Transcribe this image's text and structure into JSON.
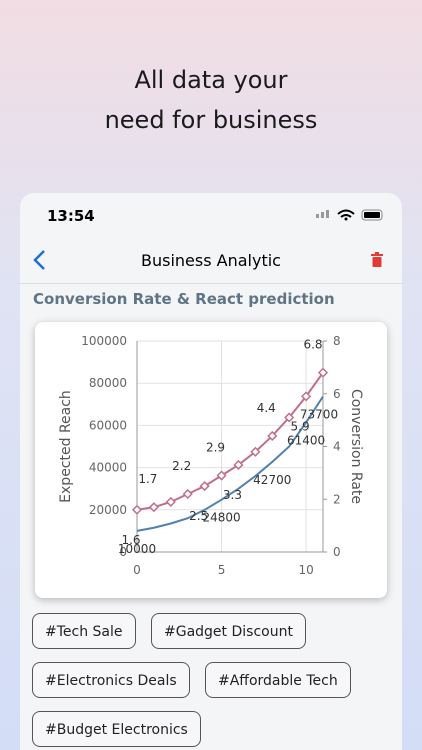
{
  "header": {
    "lines": [
      "All data your",
      "need for business"
    ]
  },
  "status": {
    "time": "13:54"
  },
  "nav": {
    "title": "Business Analytic"
  },
  "section": {
    "title": "Conversion Rate & React prediction"
  },
  "chart_data": {
    "type": "line",
    "ylabel": "Expected Reach",
    "y2label": "Conversion Rate",
    "x": [
      0,
      1,
      2,
      3,
      4,
      5,
      6,
      7,
      8,
      9,
      10,
      11
    ],
    "xlim": [
      0,
      11
    ],
    "xticks": [
      0,
      5,
      10
    ],
    "ylim": [
      0,
      100000
    ],
    "yticks": [
      0,
      20000,
      40000,
      60000,
      80000,
      100000
    ],
    "y2lim": [
      0,
      8
    ],
    "y2ticks": [
      0,
      2,
      4,
      6,
      8
    ],
    "grid": true,
    "series": [
      {
        "name": "Expected Reach",
        "color": "#4f81b0",
        "values": [
          10000,
          11500,
          13500,
          16000,
          20000,
          24800,
          30000,
          36000,
          42700,
          50000,
          61400,
          73700
        ],
        "value_labels": [
          "10000",
          null,
          null,
          null,
          null,
          "24800",
          null,
          null,
          "42700",
          null,
          "61400",
          "73700"
        ]
      },
      {
        "name": "Conversion Rate",
        "color": "#c0708a",
        "axis": "y2",
        "values": [
          1.6,
          1.7,
          1.9,
          2.2,
          2.5,
          2.9,
          3.3,
          3.8,
          4.4,
          5.1,
          5.9,
          6.8
        ],
        "value_labels": [
          "1.6",
          "1.7",
          null,
          "2.2",
          "2.5",
          "2.9",
          "3.3",
          null,
          "4.4",
          null,
          "5.9",
          "6.8"
        ]
      }
    ]
  },
  "tags": [
    "#Tech Sale",
    "#Gadget Discount",
    "#Electronics Deals",
    "#Affordable Tech",
    "#Budget Electronics"
  ]
}
